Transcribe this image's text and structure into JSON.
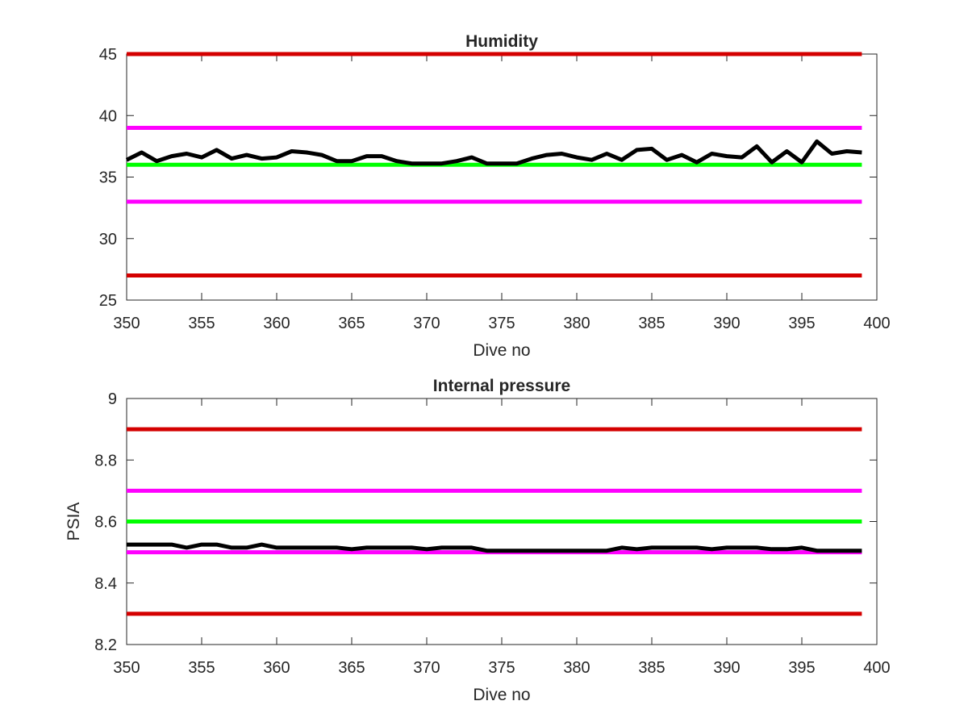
{
  "chart_data": [
    {
      "type": "line",
      "title": "Humidity",
      "xlabel": "Dive no",
      "ylabel": "",
      "xlim": [
        350,
        400
      ],
      "ylim": [
        25,
        45
      ],
      "xticks": [
        350,
        355,
        360,
        365,
        370,
        375,
        380,
        385,
        390,
        395,
        400
      ],
      "yticks": [
        25,
        30,
        35,
        40,
        45
      ],
      "grid": false,
      "legend": "none",
      "x": [
        350,
        351,
        352,
        353,
        354,
        355,
        356,
        357,
        358,
        359,
        360,
        361,
        362,
        363,
        364,
        365,
        366,
        367,
        368,
        369,
        370,
        371,
        372,
        373,
        374,
        375,
        376,
        377,
        378,
        379,
        380,
        381,
        382,
        383,
        384,
        385,
        386,
        387,
        388,
        389,
        390,
        391,
        392,
        393,
        394,
        395,
        396,
        397,
        398,
        399
      ],
      "series": [
        {
          "color": "#000000",
          "values": [
            36.4,
            37.0,
            36.3,
            36.7,
            36.9,
            36.6,
            37.2,
            36.5,
            36.8,
            36.5,
            36.6,
            37.1,
            37.0,
            36.8,
            36.3,
            36.3,
            36.7,
            36.7,
            36.3,
            36.1,
            36.1,
            36.1,
            36.3,
            36.6,
            36.1,
            36.1,
            36.1,
            36.5,
            36.8,
            36.9,
            36.6,
            36.4,
            36.9,
            36.4,
            37.2,
            37.3,
            36.4,
            36.8,
            36.2,
            36.9,
            36.7,
            36.6,
            37.5,
            36.2,
            37.1,
            36.2,
            37.9,
            36.9,
            37.1,
            37.0
          ]
        }
      ],
      "reference_lines": [
        {
          "y": 45,
          "color": "#d40000"
        },
        {
          "y": 39,
          "color": "#ff00ff"
        },
        {
          "y": 36,
          "color": "#00ff00"
        },
        {
          "y": 33,
          "color": "#ff00ff"
        },
        {
          "y": 27,
          "color": "#d40000"
        }
      ]
    },
    {
      "type": "line",
      "title": "Internal pressure",
      "xlabel": "Dive no",
      "ylabel": "PSIA",
      "xlim": [
        350,
        400
      ],
      "ylim": [
        8.2,
        9
      ],
      "xticks": [
        350,
        355,
        360,
        365,
        370,
        375,
        380,
        385,
        390,
        395,
        400
      ],
      "yticks": [
        8.2,
        8.4,
        8.6,
        8.8,
        9
      ],
      "grid": false,
      "legend": "none",
      "x": [
        350,
        351,
        352,
        353,
        354,
        355,
        356,
        357,
        358,
        359,
        360,
        361,
        362,
        363,
        364,
        365,
        366,
        367,
        368,
        369,
        370,
        371,
        372,
        373,
        374,
        375,
        376,
        377,
        378,
        379,
        380,
        381,
        382,
        383,
        384,
        385,
        386,
        387,
        388,
        389,
        390,
        391,
        392,
        393,
        394,
        395,
        396,
        397,
        398,
        399
      ],
      "series": [
        {
          "color": "#000000",
          "values": [
            8.525,
            8.525,
            8.525,
            8.525,
            8.515,
            8.525,
            8.525,
            8.515,
            8.515,
            8.525,
            8.515,
            8.515,
            8.515,
            8.515,
            8.515,
            8.51,
            8.515,
            8.515,
            8.515,
            8.515,
            8.51,
            8.515,
            8.515,
            8.515,
            8.505,
            8.505,
            8.505,
            8.505,
            8.505,
            8.505,
            8.505,
            8.505,
            8.505,
            8.515,
            8.51,
            8.515,
            8.515,
            8.515,
            8.515,
            8.51,
            8.515,
            8.515,
            8.515,
            8.51,
            8.51,
            8.515,
            8.505,
            8.505,
            8.505,
            8.505
          ]
        }
      ],
      "reference_lines": [
        {
          "y": 8.9,
          "color": "#d40000"
        },
        {
          "y": 8.7,
          "color": "#ff00ff"
        },
        {
          "y": 8.6,
          "color": "#00ff00"
        },
        {
          "y": 8.5,
          "color": "#ff00ff"
        },
        {
          "y": 8.3,
          "color": "#d40000"
        }
      ]
    }
  ]
}
